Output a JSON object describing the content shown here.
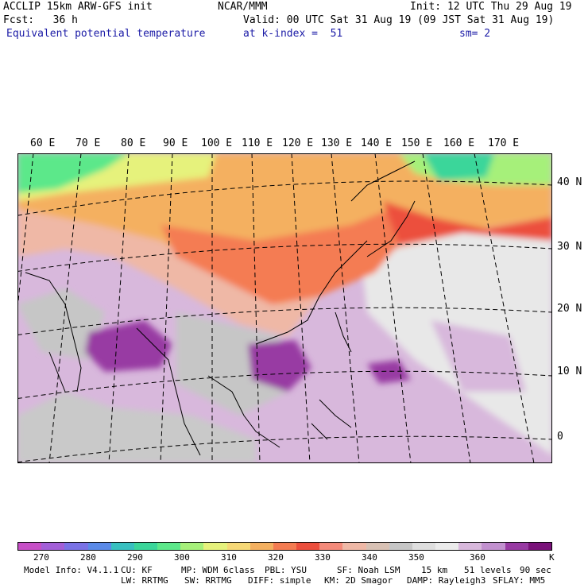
{
  "header": {
    "line1_left": "ACCLIP 15km ARW-GFS init",
    "line1_center": "NCAR/MMM",
    "line1_right": "Init: 12 UTC Thu 29 Aug 19",
    "line2_left": "Fcst:   36 h",
    "line2_right": "Valid: 00 UTC Sat 31 Aug 19 (09 JST Sat 31 Aug 19)",
    "line3_left": "Equivalent potential temperature",
    "line3_center": "at k-index =  51",
    "line3_right": "sm= 2"
  },
  "map": {
    "lon_labels": [
      "60 E",
      "70 E",
      "80 E",
      "90 E",
      "100 E",
      "110 E",
      "120 E",
      "130 E",
      "140 E",
      "150 E",
      "160 E",
      "170 E"
    ],
    "lat_labels": [
      "40 N",
      "30 N",
      "20 N",
      "10 N",
      "0"
    ]
  },
  "colorbar": {
    "colors": [
      "#c74fc7",
      "#a35fd8",
      "#7a72e6",
      "#5a8ae8",
      "#38c0c0",
      "#3ad69a",
      "#5ce88a",
      "#a6f07a",
      "#e6f27c",
      "#f6d876",
      "#f4b060",
      "#f47c52",
      "#ec4f3d",
      "#f48a7a",
      "#efb8a6",
      "#d8c1b4",
      "#c6c6c6",
      "#dedede",
      "#ebebeb",
      "#d8b8dc",
      "#c291cf",
      "#983aa3",
      "#7a127a"
    ],
    "labels": [
      "270",
      "280",
      "290",
      "300",
      "310",
      "320",
      "330",
      "340",
      "350",
      "360",
      "K"
    ]
  },
  "footer": {
    "line1": [
      "Model Info: V4.1.1",
      "CU: KF",
      "MP: WDM 6class",
      "PBL: YSU",
      "SF: Noah LSM",
      "15 km",
      "51 levels",
      "90 sec"
    ],
    "line2": [
      "LW: RRTMG",
      "SW: RRTMG",
      "DIFF: simple",
      "KM: 2D Smagor",
      "DAMP: Rayleigh3",
      "SFLAY: MM5"
    ]
  }
}
